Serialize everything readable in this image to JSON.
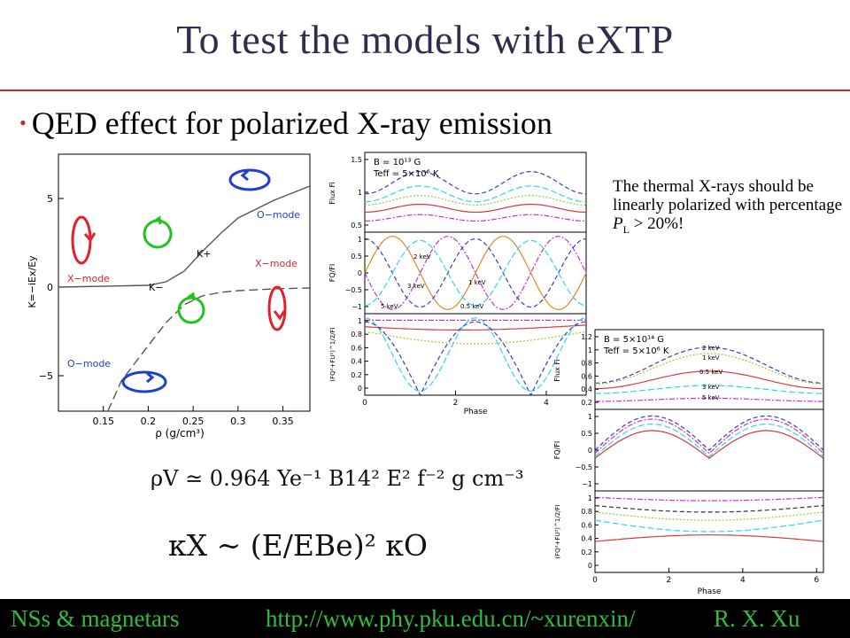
{
  "slide": {
    "title": "To test the models with eXTP",
    "bullet": "QED effect for polarized X-ray emission"
  },
  "note": {
    "line1": "The thermal X-rays should be linearly polarized with percentage ",
    "p": "P",
    "p_sub": "L",
    "tail": " > 20%!"
  },
  "formulas": {
    "density": "ρV ≃ 0.964 Ye⁻¹ B14² E² f⁻² g cm⁻³",
    "kappa": "κX ~ (E/EBe)² κO"
  },
  "footer": {
    "left": "NSs & magnetars",
    "center": "http://www.phy.pku.edu.cn/~xurenxin/",
    "right": "R. X. Xu"
  },
  "chart_data": [
    {
      "type": "line",
      "xlabel": "ρ (g/cm³)",
      "ylabel": "K=−iEx/Ey",
      "xlim": [
        0.1,
        0.38
      ],
      "ylim": [
        -7,
        7.5
      ],
      "xticks": [
        "0.15",
        "0.2",
        "0.25",
        "0.3",
        "0.35"
      ],
      "yticks": [
        "5",
        "0",
        "−5"
      ],
      "annotations": [
        "O−mode",
        "X−mode",
        "X−mode",
        "O−mode",
        "K+",
        "K−"
      ],
      "series": [
        {
          "name": "K+",
          "style": "solid",
          "x": [
            0.1,
            0.2,
            0.22,
            0.24,
            0.26,
            0.28,
            0.3,
            0.34,
            0.38
          ],
          "y": [
            0.0,
            0.1,
            0.3,
            0.9,
            2.0,
            3.0,
            3.9,
            4.9,
            5.7
          ]
        },
        {
          "name": "K−",
          "style": "dashed",
          "x": [
            0.155,
            0.17,
            0.2,
            0.22,
            0.24,
            0.26,
            0.28,
            0.3,
            0.34,
            0.38
          ],
          "y": [
            -7.0,
            -5.3,
            -3.3,
            -2.0,
            -1.0,
            -0.5,
            -0.3,
            -0.2,
            -0.1,
            -0.05
          ]
        }
      ]
    },
    {
      "type": "line",
      "labels": [
        "B = 10¹³ G",
        "Teff = 5×10⁶ K"
      ],
      "energy_labels": [
        "2 keV",
        "3 keV",
        "5 keV",
        "1 keV",
        "0.5 keV"
      ],
      "xlabel": "Phase",
      "xticks": [
        "0",
        "2",
        "4"
      ],
      "subplots": [
        {
          "ylabel": "Flux Fi",
          "yticks": [
            "1.5",
            "1",
            "0.5"
          ]
        },
        {
          "ylabel": "FQ/FI",
          "yticks": [
            "1",
            "0.5",
            "0",
            "−0.5",
            "−1"
          ]
        },
        {
          "ylabel": "(FQ²+FU²)^1/2/FI",
          "yticks": [
            "1",
            "0.8",
            "0.6",
            "0.4",
            "0.2",
            "0"
          ]
        }
      ]
    },
    {
      "type": "line",
      "labels": [
        "B = 5×10¹⁴ G",
        "Teff = 5×10⁶ K"
      ],
      "energy_labels": [
        "2 keV",
        "1 keV",
        "0.5 keV",
        "3 keV",
        "5 keV"
      ],
      "xlabel": "Phase",
      "xticks": [
        "0",
        "2",
        "4",
        "6"
      ],
      "subplots": [
        {
          "ylabel": "Flux Fi",
          "yticks": [
            "1.2",
            "1",
            "0.8",
            "0.6",
            "0.4",
            "0.2"
          ]
        },
        {
          "ylabel": "FQ/FI",
          "yticks": [
            "1",
            "0.5",
            "0",
            "−0.5",
            "−1"
          ]
        },
        {
          "ylabel": "(FQ²+FU²)^1/2/FI",
          "yticks": [
            "1",
            "0.8",
            "0.6",
            "0.4",
            "0.2",
            "0"
          ]
        }
      ]
    }
  ]
}
